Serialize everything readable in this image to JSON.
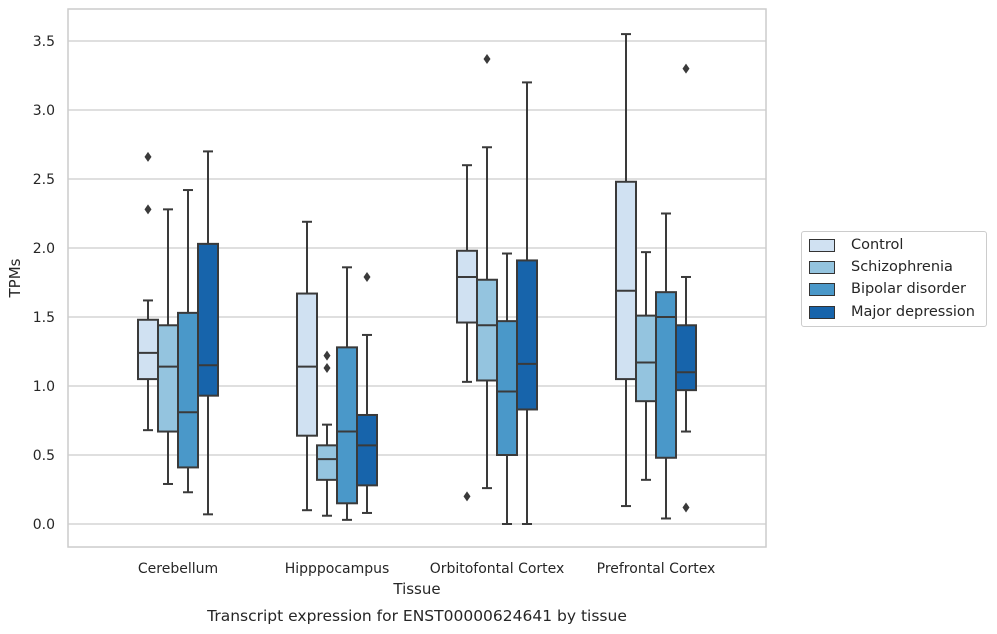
{
  "chart_data": {
    "type": "box",
    "title": "Transcript expression for ENST00000624641 by tissue",
    "xlabel": "Tissue",
    "ylabel": "TPMs",
    "ylim": [
      -0.17,
      3.67
    ],
    "yticks": [
      "0.0",
      "0.5",
      "1.0",
      "1.5",
      "2.0",
      "2.5",
      "3.0",
      "3.5"
    ],
    "categories": [
      "Cerebellum",
      "Hipppocampus",
      "Orbitofontal Cortex",
      "Prefrontal Cortex"
    ],
    "grid": "horizontal",
    "legend_position": "right",
    "series": [
      {
        "name": "Control",
        "color": "#d0e1f2",
        "boxes": [
          {
            "min": 0.68,
            "q1": 1.05,
            "median": 1.24,
            "q3": 1.48,
            "max": 1.62,
            "outliers": [
              2.28,
              2.66
            ]
          },
          {
            "min": 0.1,
            "q1": 0.64,
            "median": 1.14,
            "q3": 1.67,
            "max": 2.19,
            "outliers": []
          },
          {
            "min": 1.03,
            "q1": 1.46,
            "median": 1.79,
            "q3": 1.98,
            "max": 2.6,
            "outliers": [
              0.2
            ]
          },
          {
            "min": 0.13,
            "q1": 1.05,
            "median": 1.69,
            "q3": 2.48,
            "max": 3.55,
            "outliers": []
          }
        ]
      },
      {
        "name": "Schizophrenia",
        "color": "#94c4df",
        "boxes": [
          {
            "min": 0.29,
            "q1": 0.67,
            "median": 1.14,
            "q3": 1.44,
            "max": 2.28,
            "outliers": []
          },
          {
            "min": 0.06,
            "q1": 0.32,
            "median": 0.47,
            "q3": 0.57,
            "max": 0.72,
            "outliers": [
              1.13,
              1.22
            ]
          },
          {
            "min": 0.26,
            "q1": 1.04,
            "median": 1.44,
            "q3": 1.77,
            "max": 2.73,
            "outliers": [
              3.37
            ]
          },
          {
            "min": 0.32,
            "q1": 0.89,
            "median": 1.17,
            "q3": 1.51,
            "max": 1.97,
            "outliers": []
          }
        ]
      },
      {
        "name": "Bipolar disorder",
        "color": "#4a98c9",
        "boxes": [
          {
            "min": 0.23,
            "q1": 0.41,
            "median": 0.81,
            "q3": 1.53,
            "max": 2.42,
            "outliers": []
          },
          {
            "min": 0.03,
            "q1": 0.15,
            "median": 0.67,
            "q3": 1.28,
            "max": 1.86,
            "outliers": []
          },
          {
            "min": 0.0,
            "q1": 0.5,
            "median": 0.96,
            "q3": 1.47,
            "max": 1.96,
            "outliers": []
          },
          {
            "min": 0.04,
            "q1": 0.48,
            "median": 1.5,
            "q3": 1.68,
            "max": 2.25,
            "outliers": []
          }
        ]
      },
      {
        "name": "Major depression",
        "color": "#1764ab",
        "boxes": [
          {
            "min": 0.07,
            "q1": 0.93,
            "median": 1.15,
            "q3": 2.03,
            "max": 2.7,
            "outliers": []
          },
          {
            "min": 0.08,
            "q1": 0.28,
            "median": 0.57,
            "q3": 0.79,
            "max": 1.37,
            "outliers": [
              1.79
            ]
          },
          {
            "min": 0.0,
            "q1": 0.83,
            "median": 1.16,
            "q3": 1.91,
            "max": 3.2,
            "outliers": []
          },
          {
            "min": 0.67,
            "q1": 0.97,
            "median": 1.1,
            "q3": 1.44,
            "max": 1.79,
            "outliers": [
              0.12,
              3.3
            ]
          }
        ]
      }
    ]
  }
}
